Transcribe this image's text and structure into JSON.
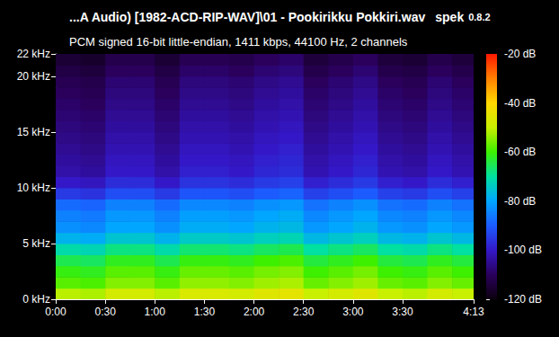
{
  "chart_data": {
    "type": "spectrogram",
    "title": "...A Audio) [1982-ACD-RIP-WAV]\\01 - Pookirikku Pokkiri.wav",
    "app": "spek",
    "version": "0.8.2",
    "subtitle": "PCM signed 16-bit little-endian, 1411 kbps, 44100 Hz, 2 channels",
    "xlim": [
      0,
      253
    ],
    "xticks": [
      {
        "value": 0,
        "label": "0:00"
      },
      {
        "value": 30,
        "label": "0:30"
      },
      {
        "value": 60,
        "label": "1:00"
      },
      {
        "value": 90,
        "label": "1:30"
      },
      {
        "value": 120,
        "label": "2:00"
      },
      {
        "value": 150,
        "label": "2:30"
      },
      {
        "value": 180,
        "label": "3:00"
      },
      {
        "value": 210,
        "label": "3:30"
      },
      {
        "value": 253,
        "label": "4:13"
      }
    ],
    "ylim": [
      0,
      22
    ],
    "yticks": [
      {
        "value": 0,
        "label": "0 kHz"
      },
      {
        "value": 5,
        "label": "5 kHz"
      },
      {
        "value": 10,
        "label": "10 kHz"
      },
      {
        "value": 15,
        "label": "15 kHz"
      },
      {
        "value": 20,
        "label": "20 kHz"
      },
      {
        "value": 22,
        "label": "22 kHz"
      }
    ],
    "grid": false,
    "time_edges": [
      0,
      15,
      30,
      45,
      60,
      75,
      90,
      105,
      120,
      135,
      150,
      165,
      180,
      195,
      210,
      225,
      240,
      253
    ],
    "frequency_edges": [
      0,
      1,
      2,
      3,
      4,
      5,
      6,
      7,
      8,
      9,
      10,
      11,
      12,
      13,
      14,
      15,
      16,
      17,
      18,
      19,
      20,
      21,
      22
    ],
    "cells": [
      [
        -51,
        -52,
        -48,
        -48,
        -51,
        -47,
        -47,
        -48,
        -46,
        -45,
        -50,
        -48,
        -46,
        -50,
        -51,
        -48,
        -50
      ],
      [
        -58,
        -59,
        -55,
        -55,
        -58,
        -54,
        -54,
        -55,
        -53,
        -52,
        -57,
        -55,
        -53,
        -57,
        -58,
        -55,
        -57
      ],
      [
        -61,
        -62,
        -58,
        -58,
        -61,
        -57,
        -57,
        -58,
        -56,
        -55,
        -60,
        -58,
        -56,
        -60,
        -61,
        -58,
        -60
      ],
      [
        -65,
        -66,
        -62,
        -62,
        -65,
        -61,
        -61,
        -62,
        -60,
        -59,
        -64,
        -62,
        -60,
        -64,
        -65,
        -62,
        -64
      ],
      [
        -71,
        -72,
        -68,
        -68,
        -71,
        -67,
        -67,
        -68,
        -66,
        -65,
        -70,
        -68,
        -66,
        -70,
        -71,
        -68,
        -70
      ],
      [
        -78,
        -79,
        -75,
        -75,
        -78,
        -74,
        -74,
        -75,
        -73,
        -72,
        -77,
        -75,
        -73,
        -77,
        -78,
        -75,
        -77
      ],
      [
        -83,
        -84,
        -80,
        -80,
        -83,
        -79,
        -79,
        -80,
        -78,
        -77,
        -82,
        -80,
        -78,
        -82,
        -83,
        -80,
        -82
      ],
      [
        -85,
        -86,
        -82,
        -82,
        -85,
        -81,
        -81,
        -82,
        -80,
        -79,
        -84,
        -82,
        -80,
        -84,
        -85,
        -82,
        -84
      ],
      [
        -88,
        -89,
        -85,
        -85,
        -88,
        -84,
        -84,
        -85,
        -83,
        -82,
        -87,
        -85,
        -83,
        -87,
        -88,
        -85,
        -87
      ],
      [
        -95,
        -96,
        -92,
        -92,
        -95,
        -91,
        -91,
        -92,
        -90,
        -89,
        -94,
        -92,
        -90,
        -94,
        -95,
        -92,
        -94
      ],
      [
        -100,
        -101,
        -97,
        -97,
        -100,
        -96,
        -96,
        -97,
        -95,
        -94,
        -99,
        -97,
        -95,
        -99,
        -100,
        -97,
        -99
      ],
      [
        -103,
        -104,
        -100,
        -100,
        -103,
        -99,
        -99,
        -100,
        -98,
        -97,
        -102,
        -100,
        -98,
        -102,
        -103,
        -100,
        -102
      ],
      [
        -104,
        -105,
        -101,
        -101,
        -104,
        -100,
        -100,
        -101,
        -99,
        -98,
        -103,
        -101,
        -99,
        -103,
        -104,
        -101,
        -103
      ],
      [
        -105,
        -106,
        -102,
        -102,
        -105,
        -101,
        -101,
        -102,
        -100,
        -99,
        -104,
        -102,
        -100,
        -104,
        -105,
        -102,
        -104
      ],
      [
        -106,
        -107,
        -103,
        -103,
        -106,
        -102,
        -102,
        -103,
        -101,
        -100,
        -105,
        -103,
        -101,
        -105,
        -106,
        -103,
        -105
      ],
      [
        -107,
        -108,
        -104,
        -104,
        -107,
        -103,
        -103,
        -104,
        -102,
        -101,
        -106,
        -104,
        -102,
        -106,
        -107,
        -104,
        -106
      ],
      [
        -108,
        -109,
        -105,
        -105,
        -108,
        -104,
        -104,
        -105,
        -103,
        -102,
        -107,
        -105,
        -103,
        -107,
        -108,
        -105,
        -107
      ],
      [
        -109,
        -110,
        -106,
        -106,
        -109,
        -105,
        -105,
        -106,
        -104,
        -103,
        -108,
        -106,
        -104,
        -108,
        -109,
        -106,
        -108
      ],
      [
        -110,
        -111,
        -107,
        -107,
        -110,
        -106,
        -106,
        -107,
        -105,
        -104,
        -109,
        -107,
        -105,
        -109,
        -110,
        -107,
        -109
      ],
      [
        -111,
        -112,
        -108,
        -108,
        -111,
        -107,
        -107,
        -108,
        -106,
        -105,
        -110,
        -108,
        -106,
        -110,
        -111,
        -108,
        -110
      ],
      [
        -113,
        -114,
        -110,
        -110,
        -113,
        -109,
        -109,
        -110,
        -108,
        -107,
        -112,
        -110,
        -108,
        -112,
        -113,
        -110,
        -112
      ],
      [
        -115,
        -116,
        -112,
        -112,
        -115,
        -111,
        -111,
        -112,
        -110,
        -109,
        -114,
        -112,
        -110,
        -114,
        -115,
        -112,
        -114
      ]
    ],
    "colorbar": {
      "range": [
        -120,
        -20
      ],
      "ticks": [
        {
          "value": -20,
          "label": "-20 dB"
        },
        {
          "value": -40,
          "label": "-40 dB"
        },
        {
          "value": -60,
          "label": "-60 dB"
        },
        {
          "value": -80,
          "label": "-80 dB"
        },
        {
          "value": -100,
          "label": "-100 dB"
        },
        {
          "value": -120,
          "label": "-120 dB"
        }
      ]
    }
  }
}
